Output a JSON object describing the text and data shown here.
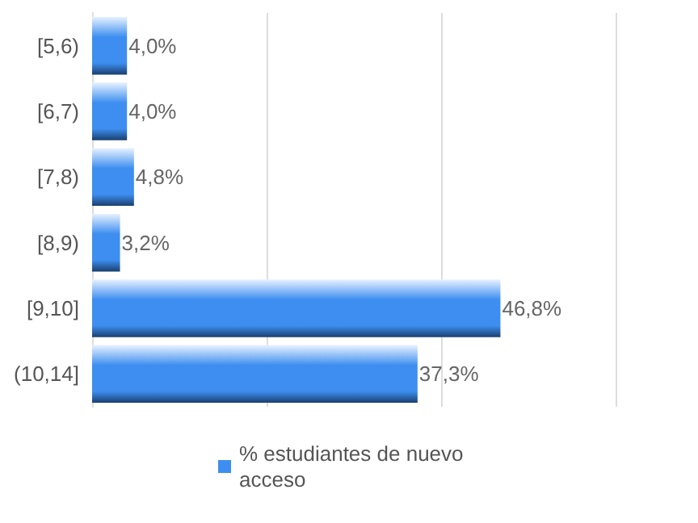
{
  "chart_data": {
    "type": "bar",
    "orientation": "horizontal",
    "categories": [
      "[5,6)",
      "[6,7)",
      "[7,8)",
      "[8,9)",
      "[9,10]",
      "(10,14]"
    ],
    "series": [
      {
        "name": "% estudiantes de nuevo acceso",
        "color": "#3d8ef0",
        "values": [
          4.0,
          4.0,
          4.8,
          3.2,
          46.8,
          37.3
        ],
        "value_labels": [
          "4,0%",
          "4,0%",
          "4,8%",
          "3,2%",
          "46,8%",
          "37,3%"
        ]
      }
    ],
    "xlim": [
      0,
      60
    ],
    "xticks": [
      {
        "value": 0,
        "label": null
      },
      {
        "value": 20,
        "label": null
      },
      {
        "value": 40,
        "label": null
      },
      {
        "value": 60,
        "label": null
      }
    ],
    "tick_labels": "y",
    "grid": "x",
    "legend": "bottom"
  }
}
